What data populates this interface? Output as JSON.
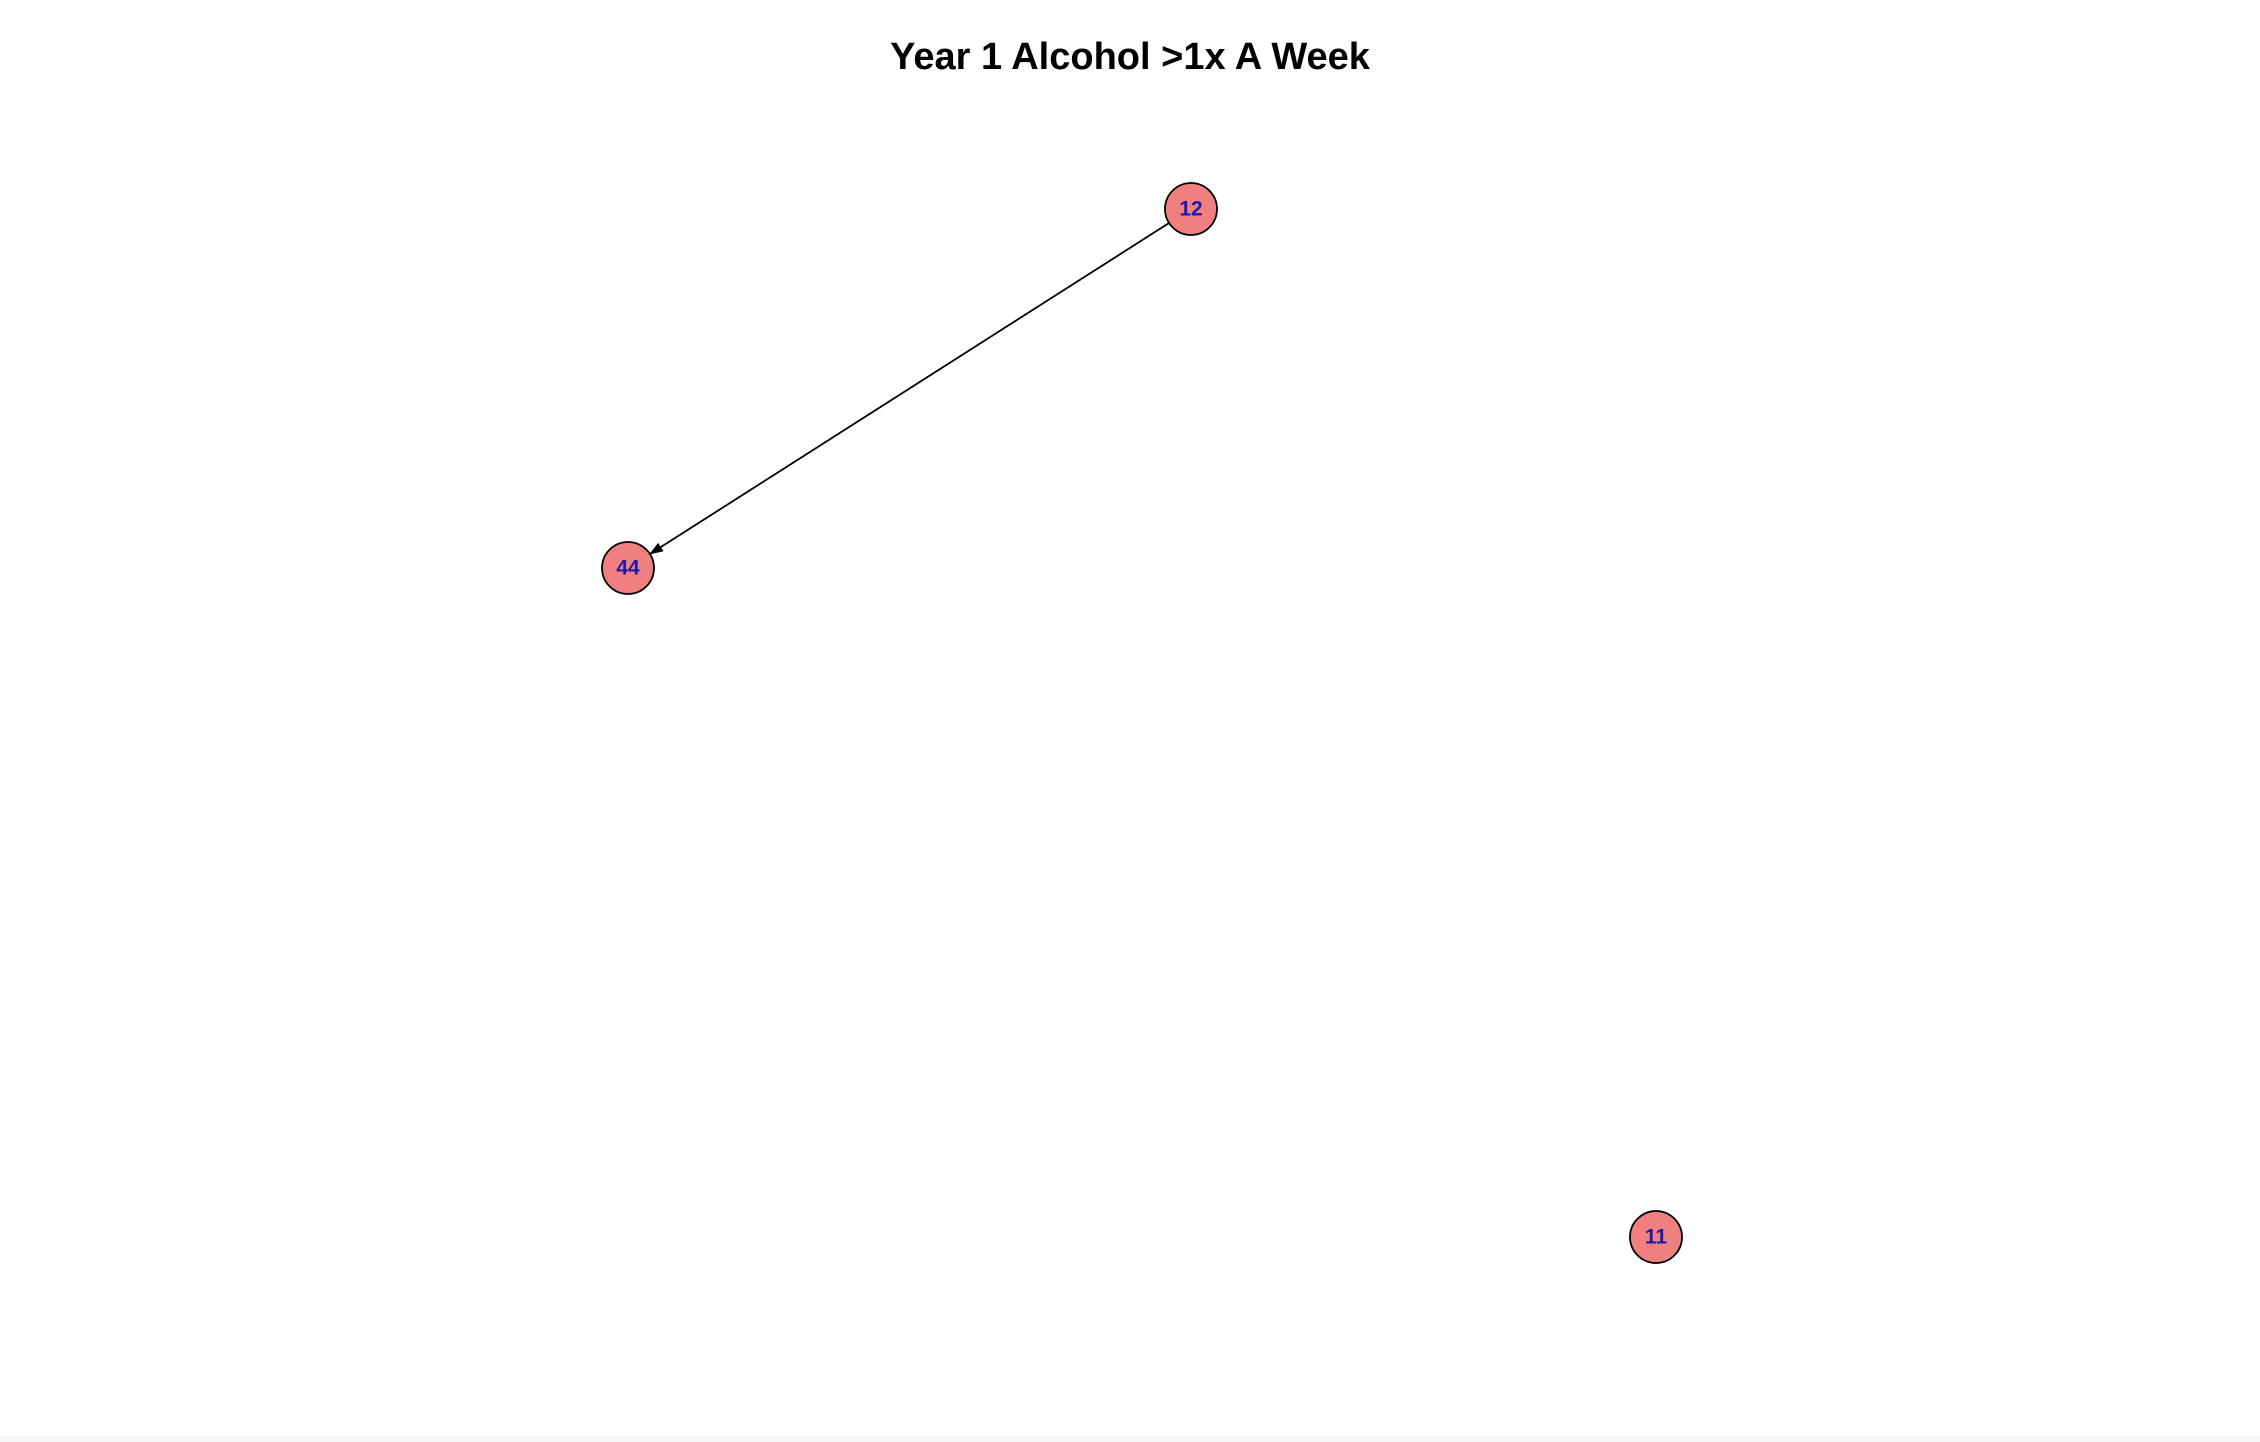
{
  "title": "Year 1 Alcohol >1x A Week",
  "colors": {
    "node_fill": "#f08080",
    "node_stroke": "#000000",
    "label": "#1a1aa6",
    "edge": "#000000"
  },
  "nodes": [
    {
      "id": "12",
      "label": "12"
    },
    {
      "id": "44",
      "label": "44"
    },
    {
      "id": "11",
      "label": "11"
    }
  ],
  "edges": [
    {
      "from": "12",
      "to": "44",
      "directed": true
    }
  ]
}
